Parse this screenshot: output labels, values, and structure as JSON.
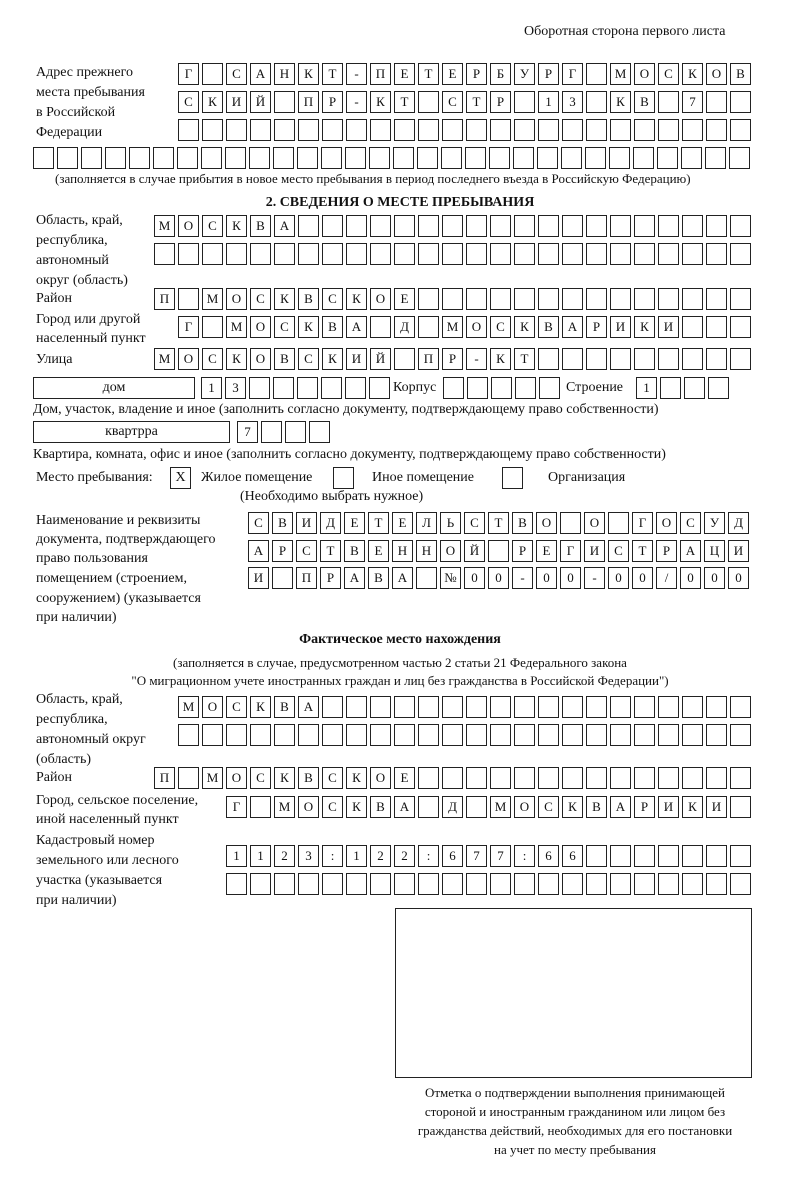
{
  "header": "Оборотная сторона первого листа",
  "prev_address": {
    "label": [
      "Адрес прежнего",
      "места пребывания",
      "в Российской",
      "Федерации"
    ],
    "rows": [
      "Г САНКТ-ПЕТЕРБУРГ МОСКОВ",
      "СКИЙ ПР-КТ СТР 13 КВ 7  ",
      "",
      ""
    ],
    "note": "(заполняется в случае прибытия в новое место пребывания в период последнего въезда в Российскую Федерацию)"
  },
  "section2_title": "2. СВЕДЕНИЯ О МЕСТЕ ПРЕБЫВАНИЯ",
  "stay": {
    "region_label": [
      "Область, край,",
      "республика,",
      "автономный",
      "округ (область)"
    ],
    "region_rows": [
      "МОСКВА",
      ""
    ],
    "district_label": "Район",
    "district": "П МОСКВСКОЕ",
    "city_label": [
      "Город или другой",
      "населенный пункт"
    ],
    "city": "Г МОСКВА Д МОСКВАРИКИ",
    "street_label": "Улица",
    "street": "МОСКОВСКИЙ ПР-КТ",
    "house_type": "дом",
    "house_number": "13",
    "korpus_label": "Корпус",
    "korpus": "",
    "stroenie_label": "Строение",
    "stroenie": "1",
    "house_note": "Дом, участок, владение и иное (заполнить согласно документу, подтверждающему право собственности)",
    "apartment_type": "квартрра",
    "apartment_number": "7",
    "apartment_note": "Квартира, комната, офис и иное (заполнить согласно документу, подтверждающему право собственности)",
    "place_label": "Место пребывания:",
    "options": [
      {
        "label": "Жилое помещение",
        "mark": "Х"
      },
      {
        "label": "Иное помещение",
        "mark": ""
      },
      {
        "label": "Организация",
        "mark": ""
      }
    ],
    "choose_note": "(Необходимо выбрать нужное)",
    "doc_label": [
      "Наименование и реквизиты",
      "документа, подтверждающего",
      "право пользования",
      "помещением (строением,",
      "сооружением) (указывается",
      "при наличии)"
    ],
    "doc_rows": [
      "СВИДЕТЕЛЬСТВО О ГОСУД",
      "АРСТВЕННОЙ РЕГИСТРАЦИ",
      "И ПРАВА №00-00-00/000"
    ]
  },
  "actual": {
    "title": "Фактическое место нахождения",
    "subtitle": [
      "(заполняется в случае, предусмотренном частью 2 статьи 21 Федерального закона",
      "\"О миграционном учете иностранных граждан и лиц без гражданства в Российской Федерации\")"
    ],
    "region_label": [
      "Область, край,",
      "республика,",
      "автономный округ",
      "(область)"
    ],
    "region_rows": [
      "МОСКВА",
      ""
    ],
    "district_label": "Район",
    "district": "П МОСКВСКОЕ",
    "city_label": [
      "Город, сельское поселение,",
      "иной населенный пункт"
    ],
    "city": "Г МОСКВА Д МОСКВАРИКИ",
    "cadastre_label": [
      "Кадастровый номер",
      "земельного или лесного",
      "участка (указывается",
      "при наличии)"
    ],
    "cadastre_rows": [
      "1123:122:677:66",
      ""
    ]
  },
  "stamp_caption": [
    "Отметка о подтверждении выполнения принимающей",
    "стороной и иностранным гражданином или лицом без",
    "гражданства действий, необходимых для его постановки",
    "на учет по месту пребывания"
  ]
}
